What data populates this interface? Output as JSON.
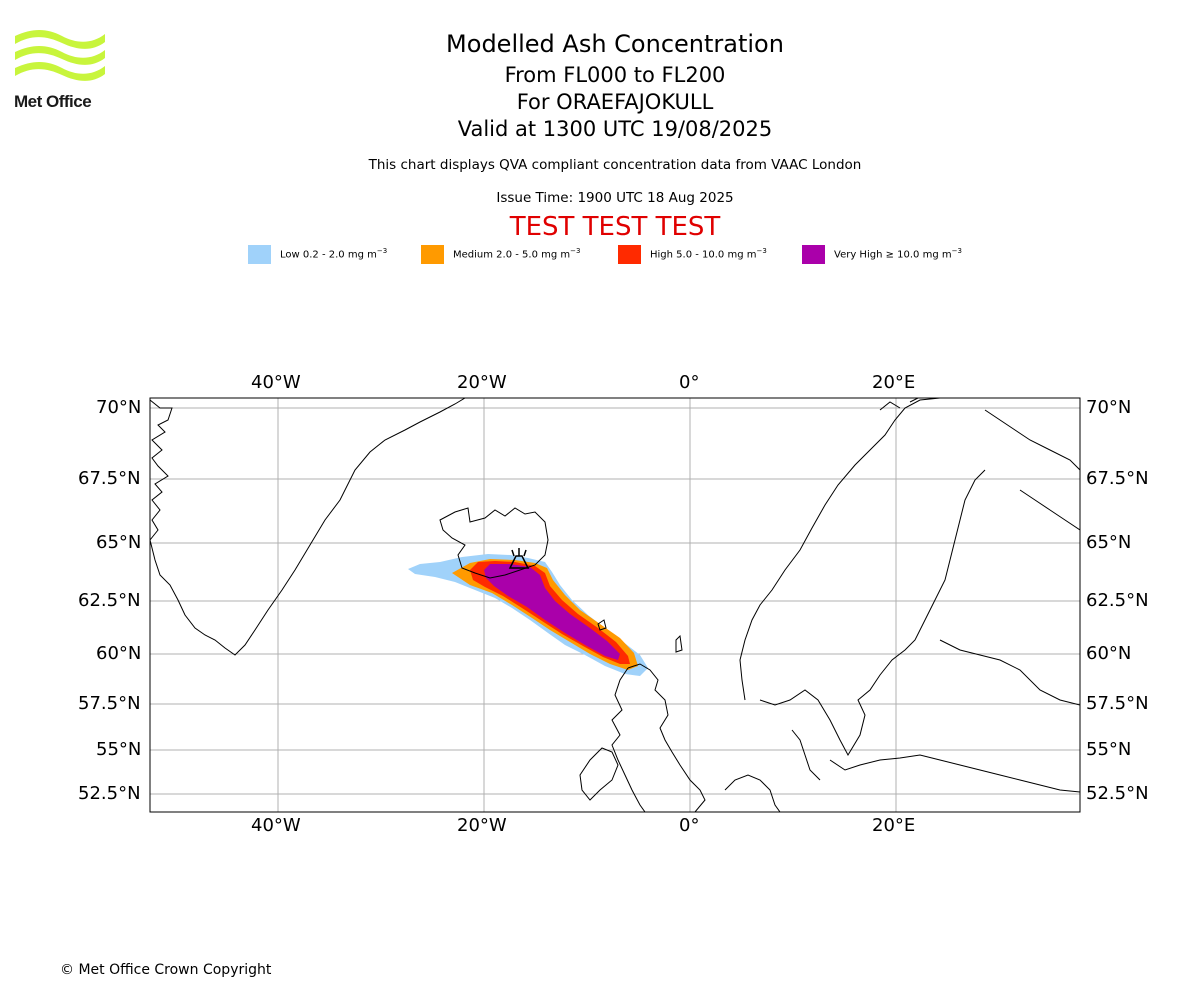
{
  "header": {
    "logo_text": "Met Office",
    "title": "Modelled Ash Concentration",
    "levels": "From FL000 to FL200",
    "volcano": "For ORAEFAJOKULL",
    "valid": "Valid at 1300 UTC 19/08/2025",
    "description": "This chart displays QVA compliant concentration data from VAAC London",
    "issue_time": "Issue Time: 1900 UTC 18 Aug 2025",
    "test_banner": "TEST TEST TEST"
  },
  "legend": [
    {
      "label": "Low 0.2 - 2.0 mg m",
      "color": "#a0d2fa"
    },
    {
      "label": "Medium 2.0 - 5.0 mg m",
      "color": "#ff9a00"
    },
    {
      "label": "High 5.0 - 10.0 mg m",
      "color": "#ff2a00"
    },
    {
      "label": "Very High ≥ 10.0 mg m",
      "color": "#aa00aa"
    }
  ],
  "legend_unit_exponent": "−3",
  "map": {
    "lon_labels": [
      "40°W",
      "20°W",
      "0°",
      "20°E"
    ],
    "lat_labels": [
      "70°N",
      "67.5°N",
      "65°N",
      "62.5°N",
      "60°N",
      "57.5°N",
      "55°N",
      "52.5°N"
    ],
    "grid_color": "#b0b0b0",
    "volcano_icon": "volcano-icon"
  },
  "footer": {
    "copyright": "© Met Office Crown Copyright"
  }
}
